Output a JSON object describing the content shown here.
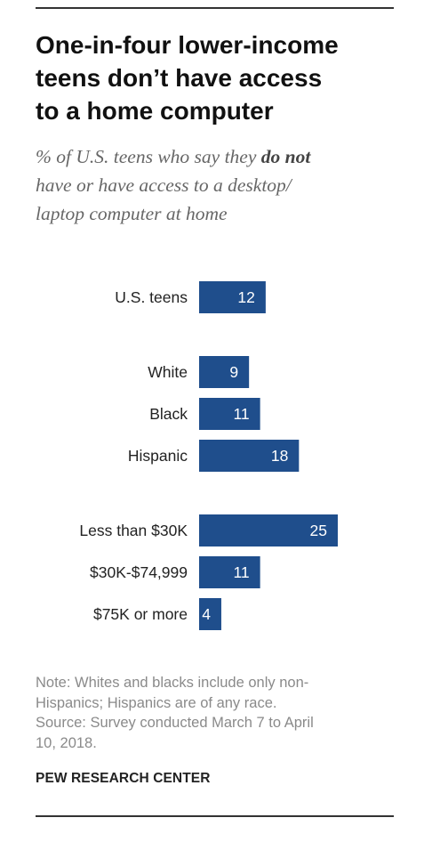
{
  "header": {
    "title_lines": [
      "One-in-four lower-income",
      "teens don’t have access",
      "to a home computer"
    ],
    "subtitle_part1": "% of U.S. teens who say they ",
    "subtitle_bold": "do not",
    "subtitle_part2": "have or have access to a desktop/",
    "subtitle_part3": "laptop computer at home"
  },
  "chart_data": {
    "type": "bar",
    "orientation": "horizontal",
    "title": "One-in-four lower-income teens don’t have access to a home computer",
    "subtitle": "% of U.S. teens who say they do not have or have access to a desktop/laptop computer at home",
    "categories": [
      "U.S. teens",
      "White",
      "Black",
      "Hispanic",
      "Less than $30K",
      "$30K-$74,999",
      "$75K or more"
    ],
    "values": [
      12,
      9,
      11,
      18,
      25,
      11,
      4
    ],
    "groups": [
      {
        "indices": [
          0
        ]
      },
      {
        "indices": [
          1,
          2,
          3
        ]
      },
      {
        "indices": [
          4,
          5,
          6
        ]
      }
    ],
    "bar_color": "#1f4e8c",
    "value_label_color": "#ffffff",
    "xlabel": "",
    "ylabel": ""
  },
  "footer": {
    "note_lines": [
      "Note: Whites and blacks include only non-",
      "Hispanics; Hispanics are of any race.",
      "Source: Survey conducted March 7 to April",
      "10, 2018."
    ],
    "org": "PEW RESEARCH CENTER"
  }
}
